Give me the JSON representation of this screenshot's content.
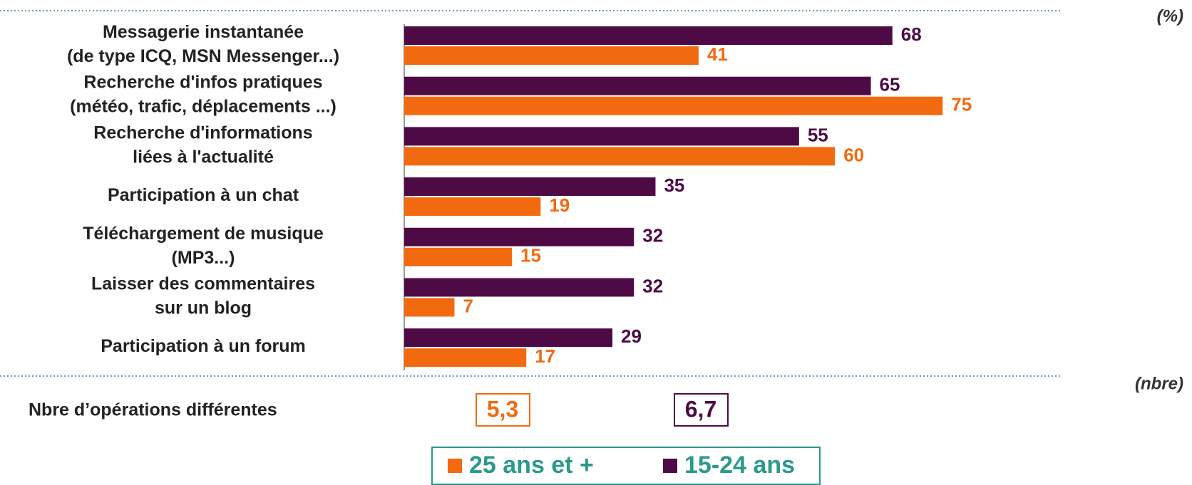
{
  "chart_data": {
    "type": "hbar",
    "unit_label": "(%)",
    "categories": [
      "Messagerie instantanée\n(de type ICQ, MSN Messenger...)",
      "Recherche d'infos pratiques\n(météo, trafic, déplacements ...)",
      "Recherche d'informations\nliées à l'actualité",
      "Participation à un chat",
      "Téléchargement de musique\n(MP3...)",
      "Laisser des commentaires\nsur un blog",
      "Participation à un forum"
    ],
    "series": [
      {
        "name": "25 ans et +",
        "color": "#f26a10",
        "values": [
          41,
          75,
          60,
          19,
          15,
          7,
          17
        ]
      },
      {
        "name": "15-24 ans",
        "color": "#4e0a44",
        "values": [
          68,
          65,
          55,
          35,
          32,
          32,
          29
        ]
      }
    ],
    "summary": {
      "label": "Nbre d’opérations différentes",
      "unit_label": "(nbre)",
      "values": [
        5.3,
        6.7
      ],
      "value_labels": [
        "5,3",
        "6,7"
      ]
    },
    "legend_color": "#2a9a8a"
  }
}
